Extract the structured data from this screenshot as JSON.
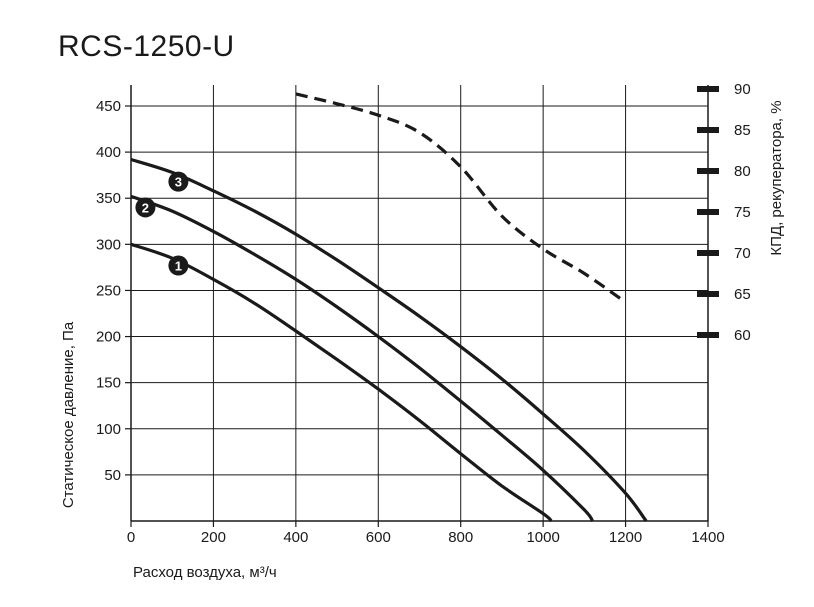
{
  "title": "RCS-1250-U",
  "chart_data": {
    "type": "line",
    "title": "RCS-1250-U",
    "xlabel": "Расход воздуха, м³/ч",
    "ylabel": "Статическое давление, Па",
    "y2label": "КПД, рекуператора, %",
    "xlim": [
      0,
      1400
    ],
    "ylim": [
      0,
      450
    ],
    "y2lim": [
      60,
      90
    ],
    "x_ticks": [
      "0",
      "200",
      "400",
      "600",
      "800",
      "1000",
      "1200",
      "1400"
    ],
    "y_ticks": [
      "50",
      "100",
      "150",
      "200",
      "250",
      "300",
      "350",
      "400",
      "450"
    ],
    "y2_ticks": [
      "60",
      "65",
      "70",
      "75",
      "80",
      "85",
      "90"
    ],
    "grid": true,
    "series": [
      {
        "name": "1",
        "axis": "left",
        "style": "solid",
        "x": [
          0,
          100,
          200,
          300,
          400,
          500,
          600,
          700,
          800,
          900,
          1000,
          1020
        ],
        "y": [
          300,
          285,
          262,
          236,
          206,
          175,
          143,
          109,
          73,
          38,
          8,
          0
        ]
      },
      {
        "name": "2",
        "axis": "left",
        "style": "solid",
        "x": [
          0,
          100,
          200,
          300,
          400,
          500,
          600,
          700,
          800,
          900,
          1000,
          1100,
          1120
        ],
        "y": [
          352,
          336,
          314,
          289,
          262,
          232,
          200,
          166,
          130,
          93,
          55,
          12,
          0
        ]
      },
      {
        "name": "3",
        "axis": "left",
        "style": "solid",
        "x": [
          0,
          100,
          200,
          300,
          400,
          500,
          600,
          700,
          800,
          900,
          1000,
          1100,
          1200,
          1250
        ],
        "y": [
          392,
          378,
          358,
          336,
          311,
          283,
          253,
          222,
          189,
          154,
          116,
          76,
          30,
          0
        ]
      },
      {
        "name": "",
        "axis": "right",
        "style": "dashed",
        "x": [
          400,
          500,
          600,
          700,
          800,
          900,
          1000,
          1100,
          1200
        ],
        "y": [
          89.4,
          88.2,
          86.8,
          84.7,
          80.5,
          74.5,
          70.5,
          67.5,
          64.0
        ]
      }
    ],
    "markers": [
      {
        "label": "1",
        "x": 115,
        "y": 277
      },
      {
        "label": "2",
        "x": 35,
        "y": 340
      },
      {
        "label": "3",
        "x": 115,
        "y": 368
      }
    ]
  }
}
